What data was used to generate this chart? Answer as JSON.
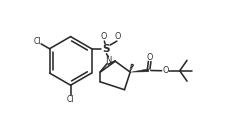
{
  "bg_color": "#ffffff",
  "line_color": "#2a2a2a",
  "lw": 1.15,
  "fig_w": 2.43,
  "fig_h": 1.38,
  "dpi": 100,
  "xlim": [
    0,
    10.5
  ],
  "ylim": [
    0,
    5.9
  ]
}
